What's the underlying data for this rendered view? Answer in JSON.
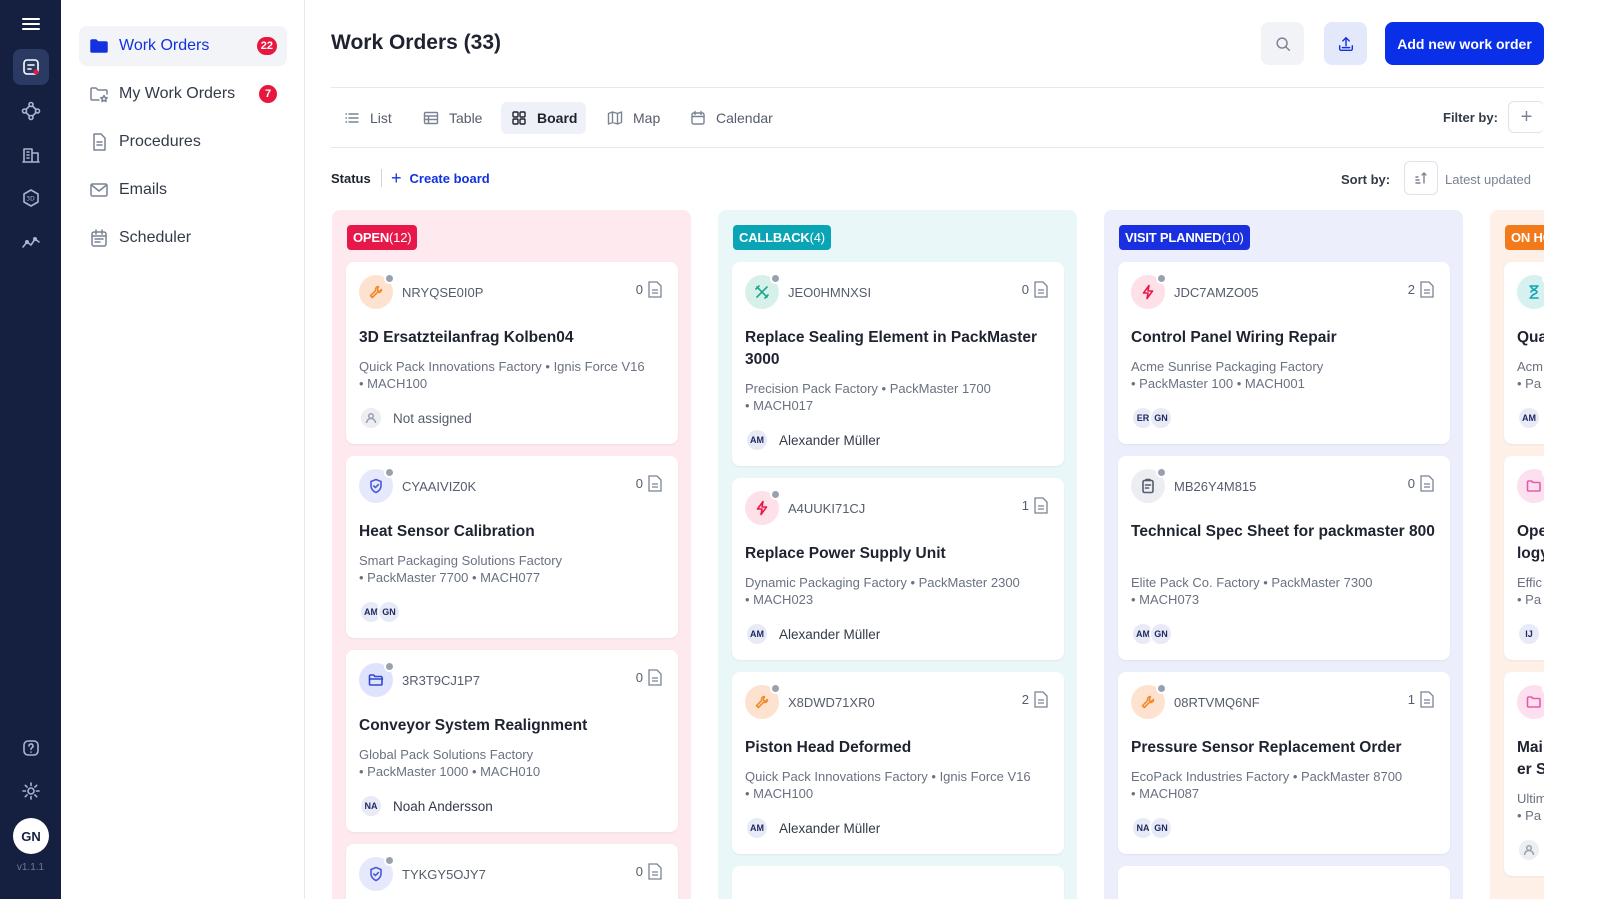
{
  "app": {
    "version": "v1.1.1",
    "user_initials": "GN"
  },
  "rail": {
    "items": [
      "menu-icon",
      "work-orders-icon",
      "network-icon",
      "building-icon",
      "3d-icon",
      "analytics-icon"
    ],
    "bottom": [
      "help-icon",
      "settings-icon"
    ]
  },
  "sidebar": {
    "items": [
      {
        "label": "Work Orders",
        "badge": "22",
        "icon": "folder-icon"
      },
      {
        "label": "My Work Orders",
        "badge": "7",
        "icon": "folder-star-icon"
      },
      {
        "label": "Procedures",
        "icon": "document-icon"
      },
      {
        "label": "Emails",
        "icon": "mail-icon"
      },
      {
        "label": "Scheduler",
        "icon": "calendar-icon"
      }
    ]
  },
  "header": {
    "title": "Work Orders (33)",
    "add_label": "Add new work order"
  },
  "views": {
    "tabs": [
      "List",
      "Table",
      "Board",
      "Map",
      "Calendar"
    ],
    "active": "Board",
    "filter_label": "Filter by:"
  },
  "toolbar": {
    "status_label": "Status",
    "create_board_label": "Create board",
    "sort_label": "Sort by:",
    "sort_value": "Latest updated"
  },
  "colors": {
    "accent": "#0a2fe8",
    "open": "#e8174a",
    "callback": "#0aa5b5",
    "visit_planned": "#1a2fe0",
    "on_hold": "#f27a1a"
  },
  "columns": [
    {
      "name": "OPEN",
      "count": "(12)",
      "cards": [
        {
          "code": "NRYQSE0I0P",
          "docs": "0",
          "title": "3D Ersatzteilanfrag Kolben04",
          "meta1": "Quick Pack Innovations Factory  •  Ignis Force V16",
          "meta2": "•  MACH100",
          "assignees": [],
          "assignee_name": "Not assigned",
          "icon": "wrench-icon"
        },
        {
          "code": "CYAAIVIZ0K",
          "docs": "0",
          "title": "Heat Sensor Calibration",
          "meta1": "Smart Packaging Solutions Factory",
          "meta2": "•  PackMaster 7700  •  MACH077",
          "assignees": [
            "AM",
            "GN"
          ],
          "assignee_name": "",
          "icon": "shield-check-icon"
        },
        {
          "code": "3R3T9CJ1P7",
          "docs": "0",
          "title": "Conveyor System Realignment",
          "meta1": "Global Pack Solutions Factory",
          "meta2": "•  PackMaster 1000  •  MACH010",
          "assignees": [
            "NA"
          ],
          "assignee_name": "Noah Andersson",
          "icon": "folder-icon"
        },
        {
          "code": "TYKGY5OJY7",
          "docs": "0",
          "icon": "shield-check-icon"
        }
      ]
    },
    {
      "name": "CALLBACK",
      "count": "(4)",
      "cards": [
        {
          "code": "JEO0HMNXSI",
          "docs": "0",
          "title": "Replace Sealing Element in PackMaster 3000",
          "meta1": "Precision Pack Factory  •  PackMaster 1700",
          "meta2": "•  MACH017",
          "assignees": [
            "AM"
          ],
          "assignee_name": "Alexander Müller",
          "icon": "tools-icon"
        },
        {
          "code": "A4UUKI71CJ",
          "docs": "1",
          "title": "Replace Power Supply Unit",
          "meta1": "Dynamic Packaging Factory  •  PackMaster 2300",
          "meta2": "•  MACH023",
          "assignees": [
            "AM"
          ],
          "assignee_name": "Alexander Müller",
          "icon": "bolt-icon"
        },
        {
          "code": "X8DWD71XR0",
          "docs": "2",
          "title": "Piston Head Deformed",
          "meta1": "Quick Pack Innovations Factory  •  Ignis Force V16",
          "meta2": "•  MACH100",
          "assignees": [
            "AM"
          ],
          "assignee_name": "Alexander Müller",
          "icon": "wrench-icon"
        }
      ]
    },
    {
      "name": "VISIT PLANNED",
      "count": "(10)",
      "cards": [
        {
          "code": "JDC7AMZO05",
          "docs": "2",
          "title": "Control Panel Wiring Repair",
          "meta1": "Acme Sunrise Packaging Factory",
          "meta2": "•  PackMaster 100  •  MACH001",
          "assignees": [
            "ER",
            "GN"
          ],
          "assignee_name": "",
          "icon": "bolt-icon"
        },
        {
          "code": "MB26Y4M815",
          "docs": "0",
          "title": "Technical Spec Sheet for packmaster 800",
          "meta1": "Elite Pack Co. Factory  •  PackMaster 7300",
          "meta2": "•  MACH073",
          "assignees": [
            "AM",
            "GN"
          ],
          "assignee_name": "",
          "icon": "clipboard-icon"
        },
        {
          "code": "08RTVMQ6NF",
          "docs": "1",
          "title": "Pressure Sensor Replacement Order",
          "meta1": "EcoPack Industries Factory  •  PackMaster 8700",
          "meta2": "•  MACH087",
          "assignees": [
            "NA",
            "GN"
          ],
          "assignee_name": "",
          "icon": "wrench-icon"
        }
      ]
    },
    {
      "name": "ON HOLD",
      "cards": [
        {
          "title": "Qua",
          "meta1": "Acm",
          "meta2": "•  Pa",
          "assignees": [
            "AM"
          ],
          "icon": "hourglass-icon"
        },
        {
          "title": "Ope",
          "title2": "logy",
          "meta1": "Effic",
          "meta2": "•  Pa",
          "assignees": [
            "IJ"
          ],
          "icon": "folder-icon"
        },
        {
          "title": "Mai",
          "title2": "er S",
          "meta1": "Ultim",
          "meta2": "•  Pa",
          "assignees": [],
          "icon": "folder-icon"
        }
      ]
    }
  ]
}
